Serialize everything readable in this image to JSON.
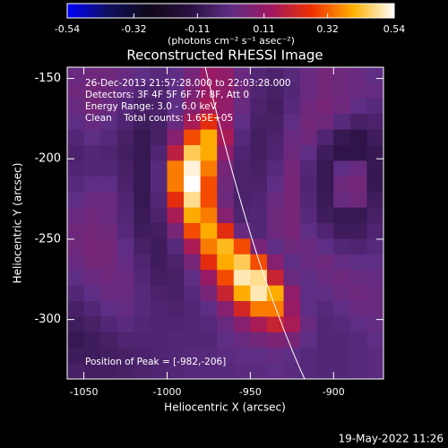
{
  "chart_data": {
    "type": "heatmap",
    "title": "Reconstructed RHESSI Image",
    "xlabel": "Heliocentric X (arcsec)",
    "ylabel": "Heliocentric Y (arcsec)",
    "colorbar_label": "(photons cm⁻² s⁻¹ asec⁻²)",
    "annotations": [
      "26-Dec-2013 21:57:28.000 to 22:03:28.000",
      "Detectors: 3F 4F 5F 6F 7F 8F, Att 0",
      "Energy Range: 3.0 - 6.0 keV",
      "Clean    Total counts: 1.65E+05"
    ],
    "peak_label": "Position of Peak = [-982,-206]",
    "footer": "19-May-2022 11:26",
    "xlim": [
      -1060,
      -870
    ],
    "ylim": [
      -337,
      -143
    ],
    "xticks": [
      -1050,
      -1000,
      -950,
      -900
    ],
    "yticks": [
      -150,
      -200,
      -250,
      -300
    ],
    "zlim": [
      -0.54,
      0.54
    ],
    "zticks": [
      -0.54,
      -0.32,
      -0.11,
      0.11,
      0.32,
      0.54
    ],
    "colorscale": [
      "#0000ff",
      "#101060",
      "#100818",
      "#2a1040",
      "#5e2d84",
      "#a01860",
      "#f03000",
      "#ffb000",
      "#ffffff"
    ],
    "limb_color": "#ffffff",
    "z": [
      [
        0.02,
        0.03,
        0.03,
        0.02,
        0,
        -0.02,
        0,
        0.05,
        0.12,
        0.1,
        0.02,
        -0.03,
        -0.05,
        -0.02,
        0.02,
        0.04,
        0.03,
        0.02,
        0.0
      ],
      [
        0.03,
        0.04,
        0.03,
        0.01,
        -0.03,
        -0.04,
        0.0,
        0.06,
        0.12,
        0.1,
        0.03,
        -0.04,
        -0.06,
        -0.03,
        0.02,
        0.04,
        0.03,
        0.02,
        0.01
      ],
      [
        0.02,
        0.04,
        0.02,
        -0.02,
        -0.06,
        -0.05,
        0.0,
        0.08,
        0.15,
        0.1,
        0.02,
        -0.05,
        -0.07,
        -0.02,
        0.03,
        0.05,
        0.03,
        0.0,
        -0.02
      ],
      [
        0.0,
        0.02,
        0.0,
        -0.04,
        -0.08,
        -0.06,
        0.02,
        0.15,
        0.25,
        0.12,
        0.0,
        -0.06,
        -0.06,
        0.0,
        0.04,
        0.03,
        -0.02,
        -0.06,
        -0.05
      ],
      [
        -0.03,
        0.0,
        -0.02,
        -0.06,
        -0.1,
        -0.06,
        0.08,
        0.3,
        0.4,
        0.15,
        -0.02,
        -0.07,
        -0.05,
        0.02,
        0.03,
        -0.04,
        -0.1,
        -0.12,
        -0.08
      ],
      [
        -0.05,
        -0.03,
        -0.04,
        -0.07,
        -0.1,
        -0.04,
        0.18,
        0.45,
        0.4,
        0.1,
        -0.04,
        -0.07,
        -0.04,
        0.03,
        0.0,
        -0.08,
        -0.12,
        -0.12,
        -0.1
      ],
      [
        -0.04,
        -0.03,
        -0.03,
        -0.06,
        -0.1,
        -0.02,
        0.35,
        0.52,
        0.35,
        0.05,
        -0.05,
        -0.06,
        -0.02,
        0.04,
        -0.03,
        -0.1,
        0.0,
        0.02,
        -0.1
      ],
      [
        -0.02,
        0.0,
        0.0,
        -0.05,
        -0.1,
        -0.02,
        0.35,
        0.54,
        0.3,
        0.03,
        -0.05,
        -0.05,
        0.0,
        0.05,
        -0.04,
        -0.1,
        0.03,
        0.04,
        -0.1
      ],
      [
        0.0,
        0.02,
        0.02,
        -0.04,
        -0.1,
        -0.03,
        0.25,
        0.48,
        0.3,
        0.03,
        -0.05,
        -0.04,
        0.02,
        0.05,
        -0.03,
        -0.09,
        0.02,
        0.03,
        -0.08
      ],
      [
        0.02,
        0.03,
        0.02,
        -0.03,
        -0.09,
        -0.05,
        0.15,
        0.4,
        0.35,
        0.08,
        -0.04,
        -0.03,
        0.03,
        0.05,
        -0.02,
        -0.08,
        -0.1,
        -0.1,
        -0.06
      ],
      [
        0.03,
        0.04,
        0.03,
        -0.02,
        -0.08,
        -0.07,
        0.05,
        0.3,
        0.4,
        0.25,
        0.02,
        -0.03,
        0.03,
        0.05,
        0.0,
        -0.04,
        -0.08,
        -0.08,
        -0.04
      ],
      [
        0.03,
        0.05,
        0.04,
        0.0,
        -0.06,
        -0.08,
        -0.02,
        0.15,
        0.35,
        0.42,
        0.3,
        0.05,
        0.0,
        0.03,
        0.02,
        0.0,
        -0.03,
        -0.04,
        -0.02
      ],
      [
        0.02,
        0.04,
        0.04,
        0.01,
        -0.04,
        -0.08,
        -0.05,
        0.05,
        0.25,
        0.4,
        0.45,
        0.3,
        0.08,
        0.0,
        0.02,
        0.03,
        0.01,
        0.0,
        0.0
      ],
      [
        0.0,
        0.02,
        0.03,
        0.02,
        -0.03,
        -0.07,
        -0.06,
        0.0,
        0.12,
        0.3,
        0.5,
        0.48,
        0.2,
        0.02,
        0.0,
        0.02,
        0.03,
        0.02,
        0.01
      ],
      [
        -0.03,
        0.0,
        0.02,
        0.02,
        -0.02,
        -0.05,
        -0.06,
        -0.02,
        0.05,
        0.2,
        0.4,
        0.5,
        0.4,
        0.1,
        0.0,
        0.0,
        0.02,
        0.03,
        0.02
      ],
      [
        -0.06,
        -0.03,
        0.0,
        0.01,
        -0.02,
        -0.04,
        -0.05,
        -0.03,
        0.0,
        0.08,
        0.22,
        0.35,
        0.35,
        0.12,
        0.0,
        -0.02,
        0.0,
        0.02,
        0.02
      ],
      [
        -0.08,
        -0.06,
        -0.03,
        -0.01,
        -0.03,
        -0.04,
        -0.04,
        -0.03,
        -0.02,
        0.02,
        0.08,
        0.15,
        0.2,
        0.15,
        0.02,
        -0.03,
        -0.02,
        0.0,
        0.01
      ],
      [
        -0.1,
        -0.08,
        -0.06,
        -0.04,
        -0.04,
        -0.04,
        -0.03,
        -0.03,
        -0.03,
        0.0,
        0.02,
        0.04,
        0.06,
        0.05,
        0.0,
        -0.03,
        -0.03,
        -0.02,
        0.0
      ],
      [
        -0.08,
        -0.08,
        -0.07,
        -0.06,
        -0.05,
        -0.04,
        -0.03,
        -0.02,
        -0.02,
        -0.01,
        0.0,
        0.0,
        0.01,
        0.0,
        -0.02,
        -0.03,
        -0.03,
        -0.02,
        -0.01
      ],
      [
        -0.06,
        -0.07,
        -0.07,
        -0.06,
        -0.05,
        -0.04,
        -0.03,
        -0.02,
        -0.02,
        -0.02,
        -0.01,
        -0.01,
        0.0,
        -0.01,
        -0.02,
        -0.03,
        -0.03,
        -0.02,
        -0.01
      ]
    ]
  }
}
